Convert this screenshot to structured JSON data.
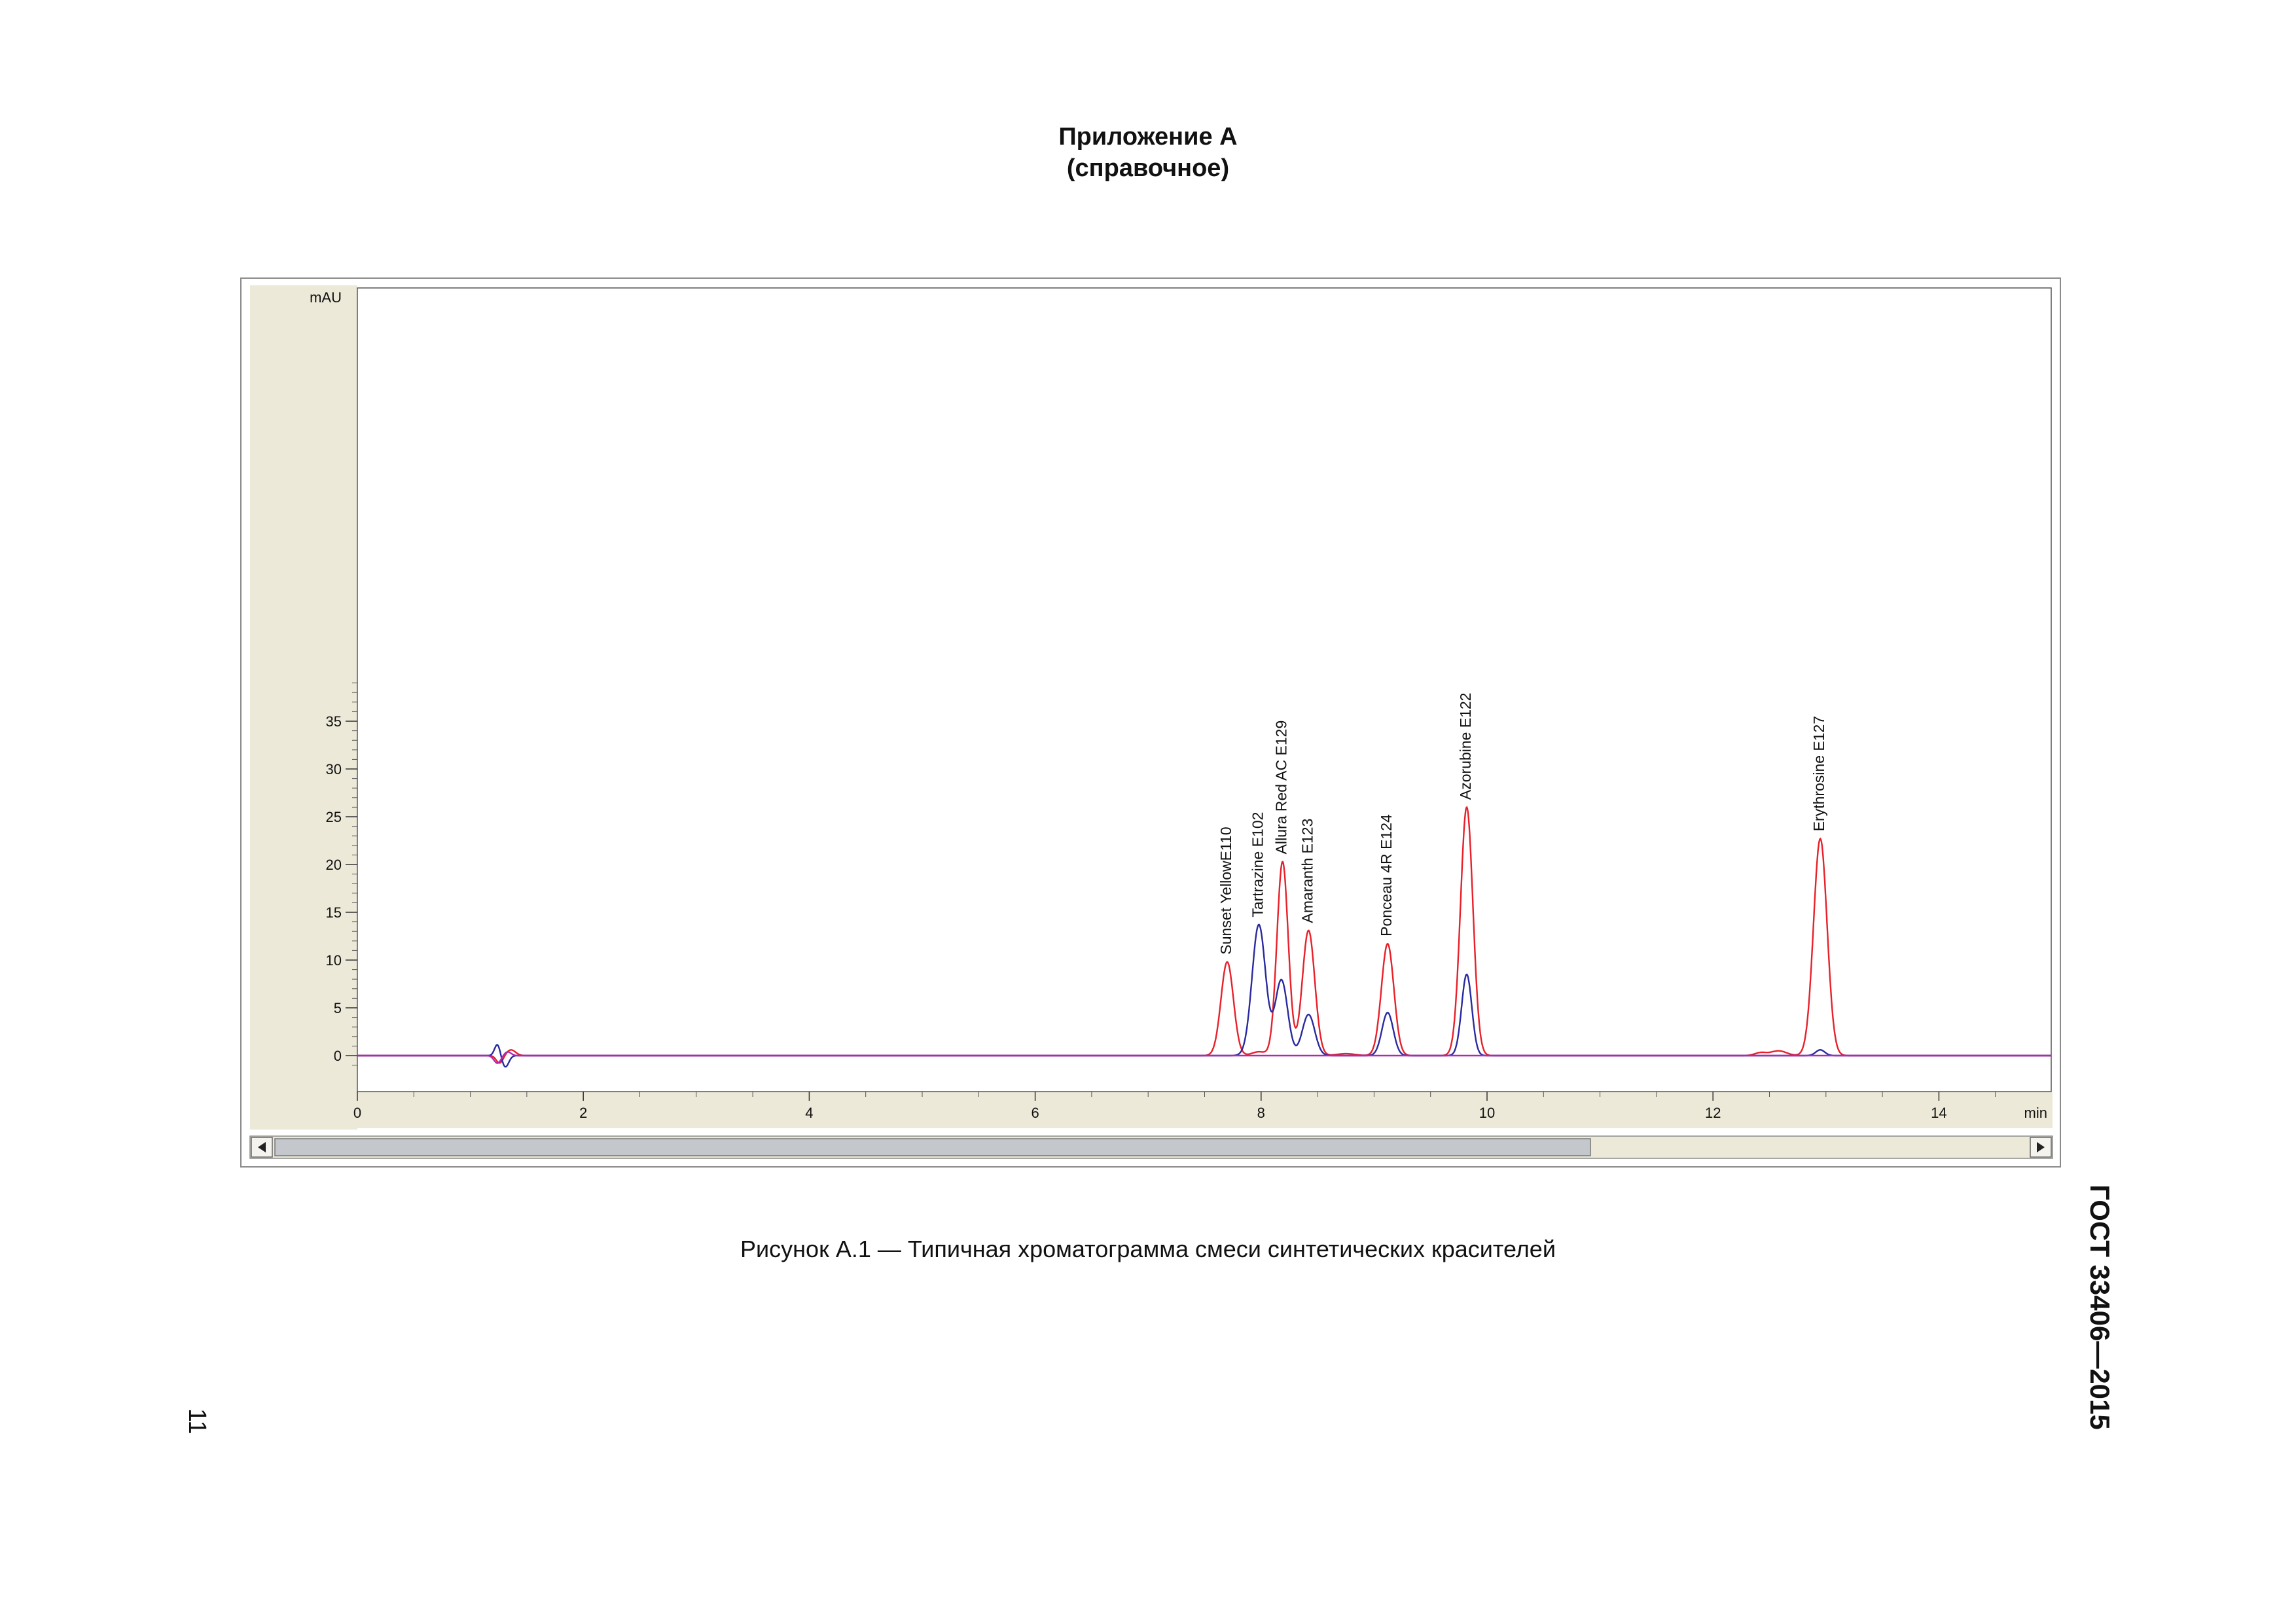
{
  "page": {
    "appendix_title": "Приложение А",
    "appendix_subtitle": "(справочное)",
    "caption": "Рисунок  А.1 — Типичная хроматограмма смеси синтетических красителей",
    "standard": "ГОСТ 33406—2015",
    "page_number": "11"
  },
  "chart_data": {
    "type": "line",
    "title": "",
    "ylabel": "mAU",
    "xlabel": "min",
    "xlim": [
      0,
      15
    ],
    "ylim": [
      -2,
      40
    ],
    "x_ticks": [
      0,
      2,
      4,
      6,
      8,
      10,
      12,
      14
    ],
    "y_ticks": [
      0,
      5,
      10,
      15,
      20,
      25,
      30,
      35
    ],
    "x_tick_labels": [
      "0",
      "2",
      "4",
      "6",
      "8",
      "10",
      "12",
      "14"
    ],
    "y_tick_labels": [
      "0",
      "5",
      "10",
      "15",
      "20",
      "25",
      "30",
      "35"
    ],
    "grid": false,
    "colors": {
      "red": "#e8202a",
      "blue": "#2a2aa0",
      "magenta": "#b02ab0",
      "frame_bg": "#ece9d8"
    },
    "series": [
      {
        "color": "red",
        "peaks": [
          {
            "x": 1.26,
            "y": -0.8,
            "w": 0.03
          },
          {
            "x": 1.36,
            "y": 0.6,
            "w": 0.04
          },
          {
            "x": 7.7,
            "y": 9.8,
            "w": 0.055
          },
          {
            "x": 7.98,
            "y": 0.4,
            "w": 0.06
          },
          {
            "x": 8.19,
            "y": 20.3,
            "w": 0.05
          },
          {
            "x": 8.42,
            "y": 13.1,
            "w": 0.055
          },
          {
            "x": 8.75,
            "y": 0.2,
            "w": 0.08
          },
          {
            "x": 9.12,
            "y": 11.7,
            "w": 0.055
          },
          {
            "x": 9.82,
            "y": 26.0,
            "w": 0.055
          },
          {
            "x": 12.42,
            "y": 0.3,
            "w": 0.05
          },
          {
            "x": 12.58,
            "y": 0.5,
            "w": 0.07
          },
          {
            "x": 12.95,
            "y": 22.7,
            "w": 0.06
          }
        ]
      },
      {
        "color": "blue",
        "peaks": [
          {
            "x": 1.24,
            "y": 1.2,
            "w": 0.025
          },
          {
            "x": 1.31,
            "y": -1.2,
            "w": 0.03
          },
          {
            "x": 7.98,
            "y": 13.7,
            "w": 0.06
          },
          {
            "x": 8.18,
            "y": 7.9,
            "w": 0.055
          },
          {
            "x": 8.42,
            "y": 4.3,
            "w": 0.055
          },
          {
            "x": 9.12,
            "y": 4.5,
            "w": 0.05
          },
          {
            "x": 9.82,
            "y": 8.5,
            "w": 0.045
          },
          {
            "x": 12.95,
            "y": 0.6,
            "w": 0.04
          }
        ]
      },
      {
        "color": "magenta",
        "peaks": [
          {
            "x": 1.24,
            "y": -0.8,
            "w": 0.03
          },
          {
            "x": 1.33,
            "y": 0.4,
            "w": 0.03
          }
        ]
      }
    ],
    "annotations": [
      {
        "text": "Sunset YellowE110",
        "x": 7.7,
        "y": 10.3
      },
      {
        "text": "Tartrazine E102",
        "x": 7.98,
        "y": 14.2
      },
      {
        "text": "Allura Red AC E129",
        "x": 8.19,
        "y": 20.8
      },
      {
        "text": "Amaranth E123",
        "x": 8.42,
        "y": 13.6
      },
      {
        "text": "Ponceau 4R E124",
        "x": 9.12,
        "y": 12.2
      },
      {
        "text": "Azorubine E122",
        "x": 9.82,
        "y": 26.5
      },
      {
        "text": "Erythrosine E127",
        "x": 12.95,
        "y": 23.2
      }
    ]
  }
}
